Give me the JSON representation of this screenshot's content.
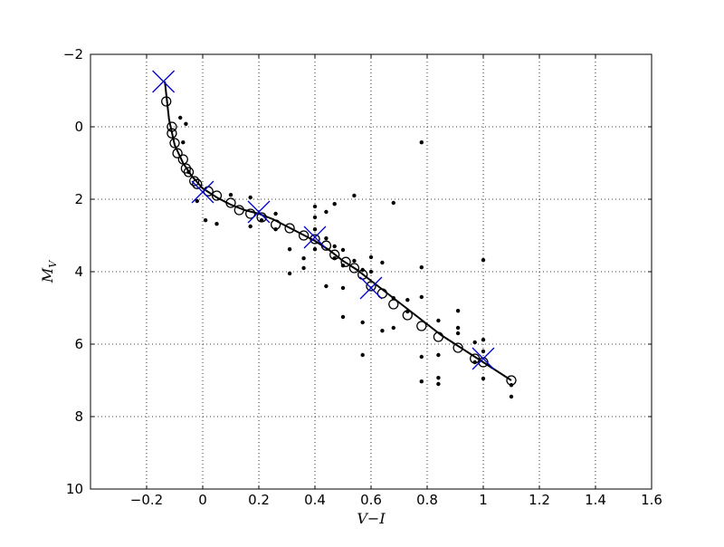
{
  "chart_data": {
    "type": "scatter",
    "xlabel": "V−I",
    "ylabel": {
      "main": "M",
      "sub": "V"
    },
    "xlim": [
      -0.4,
      1.6
    ],
    "ylim": [
      -2,
      10
    ],
    "y_inverted": true,
    "grid": true,
    "xticks": [
      {
        "value": -0.2,
        "label": "−0.2"
      },
      0.0,
      0.2,
      0.4,
      0.6,
      0.8,
      1.0,
      1.2,
      1.4,
      1.6
    ],
    "yticks": [
      {
        "value": -2,
        "label": "−2"
      },
      0,
      2,
      4,
      6,
      8,
      10
    ],
    "series": [
      {
        "marker": "dot",
        "color": "#000000",
        "x": [
          -0.08,
          -0.06,
          -0.07,
          -0.05,
          -0.02,
          0.01,
          0.05,
          0.1,
          0.17,
          0.17,
          0.21,
          0.26,
          0.26,
          0.31,
          0.31,
          0.36,
          0.36,
          0.4,
          0.4,
          0.4,
          0.4,
          0.44,
          0.44,
          0.44,
          0.47,
          0.47,
          0.47,
          0.5,
          0.5,
          0.5,
          0.5,
          0.54,
          0.54,
          0.57,
          0.57,
          0.57,
          0.6,
          0.6,
          0.64,
          0.64,
          0.68,
          0.68,
          0.68,
          0.73,
          0.73,
          0.78,
          0.78,
          0.78,
          0.78,
          0.78,
          0.84,
          0.84,
          0.84,
          0.84,
          0.91,
          0.91,
          0.91,
          0.97,
          0.97,
          1.0,
          1.0,
          1.0,
          1.0,
          1.1,
          1.1
        ],
        "values": [
          -0.25,
          -0.08,
          0.43,
          1.25,
          2.05,
          2.58,
          2.68,
          1.88,
          1.95,
          2.75,
          2.58,
          2.4,
          2.83,
          3.38,
          4.05,
          3.63,
          3.9,
          2.2,
          2.5,
          2.83,
          3.38,
          2.35,
          3.08,
          4.4,
          2.13,
          3.3,
          3.63,
          3.4,
          3.83,
          4.45,
          5.25,
          1.9,
          3.7,
          3.95,
          5.4,
          6.3,
          3.6,
          4.0,
          3.75,
          5.63,
          2.1,
          4.73,
          5.55,
          4.78,
          5.1,
          0.43,
          3.88,
          4.7,
          6.35,
          7.03,
          5.35,
          6.3,
          6.93,
          7.1,
          5.08,
          5.55,
          5.7,
          5.95,
          6.5,
          3.68,
          5.88,
          6.2,
          6.95,
          7.13,
          7.45
        ]
      },
      {
        "marker": "circle",
        "color": "#000000",
        "x": [
          -0.13,
          -0.11,
          -0.11,
          -0.1,
          -0.09,
          -0.07,
          -0.06,
          -0.05,
          -0.03,
          -0.02,
          0.02,
          0.05,
          0.1,
          0.13,
          0.17,
          0.21,
          0.26,
          0.31,
          0.36,
          0.4,
          0.44,
          0.47,
          0.51,
          0.54,
          0.57,
          0.6,
          0.64,
          0.68,
          0.73,
          0.78,
          0.84,
          0.91,
          0.97,
          1.0,
          1.1
        ],
        "values": [
          -0.7,
          0.0,
          0.18,
          0.45,
          0.73,
          0.9,
          1.15,
          1.25,
          1.5,
          1.58,
          1.78,
          1.9,
          2.1,
          2.3,
          2.4,
          2.5,
          2.7,
          2.8,
          3.0,
          3.1,
          3.28,
          3.53,
          3.73,
          3.9,
          4.08,
          4.4,
          4.6,
          4.9,
          5.2,
          5.5,
          5.8,
          6.1,
          6.4,
          6.5,
          7.0
        ]
      },
      {
        "marker": "line",
        "color": "#000000",
        "x": [
          -0.135,
          -0.12,
          -0.1,
          -0.07,
          -0.04,
          0.0,
          0.05,
          0.1,
          0.15,
          0.2,
          0.25,
          0.3,
          0.35,
          0.4,
          0.45,
          0.5,
          0.55,
          0.6,
          0.65,
          0.7,
          0.75,
          0.8,
          0.85,
          0.9,
          0.95,
          1.0,
          1.05,
          1.1
        ],
        "values": [
          -1.25,
          -0.2,
          0.5,
          1.0,
          1.35,
          1.7,
          1.95,
          2.15,
          2.3,
          2.4,
          2.55,
          2.75,
          2.95,
          3.15,
          3.4,
          3.7,
          3.95,
          4.25,
          4.55,
          4.85,
          5.15,
          5.45,
          5.75,
          6.0,
          6.25,
          6.5,
          6.75,
          7.0
        ]
      },
      {
        "marker": "x",
        "color": "#0000cc",
        "x": [
          -0.14,
          0.0,
          0.2,
          0.4,
          0.6,
          1.0
        ],
        "values": [
          -1.25,
          1.8,
          2.35,
          3.05,
          4.45,
          6.4
        ]
      }
    ]
  }
}
